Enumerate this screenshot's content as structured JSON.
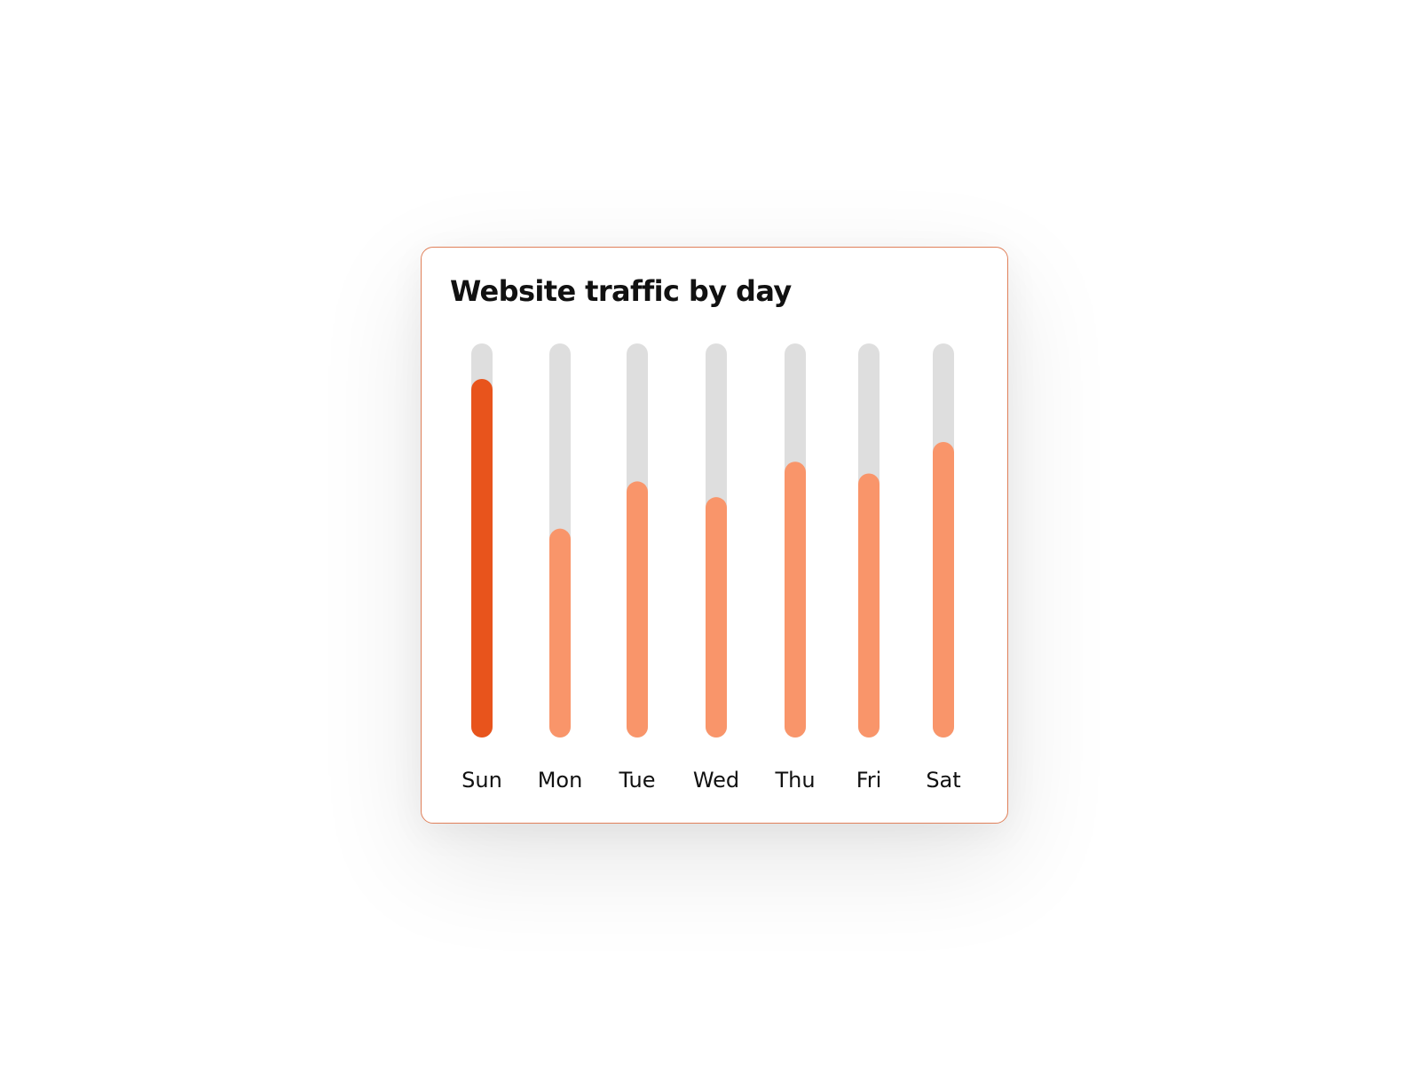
{
  "colors": {
    "highlight": "#e8541c",
    "bar": "#f9956a",
    "track": "#dedede",
    "border": "#e0805a"
  },
  "chart_data": {
    "type": "bar",
    "title": "Website traffic by day",
    "categories": [
      "Sun",
      "Mon",
      "Tue",
      "Wed",
      "Thu",
      "Fri",
      "Sat"
    ],
    "values": [
      91,
      53,
      65,
      61,
      70,
      67,
      75
    ],
    "ylim": [
      0,
      100
    ],
    "highlight_category": "Sun",
    "grid": false,
    "legend": "none"
  }
}
